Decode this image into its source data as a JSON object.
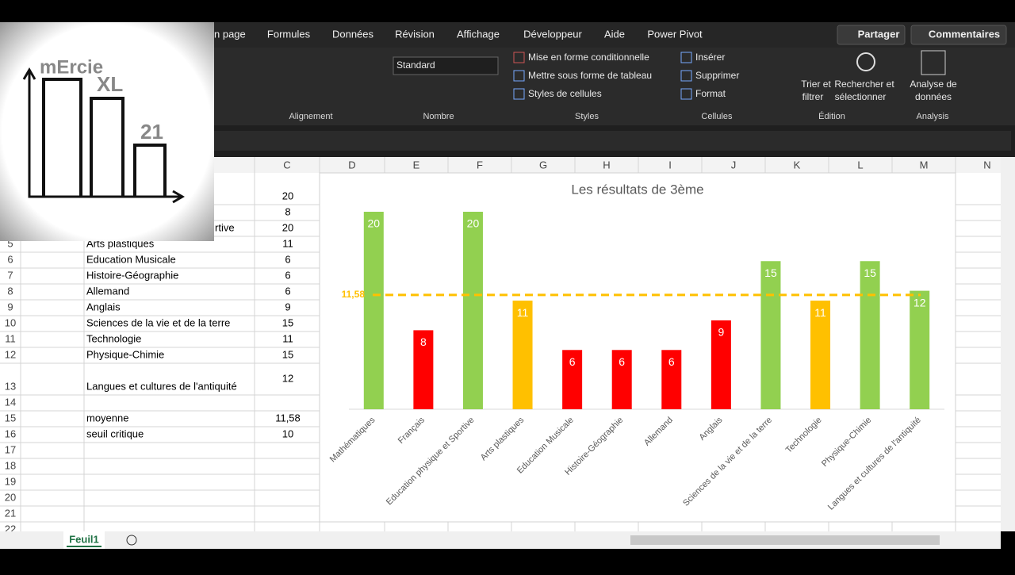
{
  "ribbon": {
    "tabs": [
      "n page",
      "Formules",
      "Données",
      "Révision",
      "Affichage",
      "Développeur",
      "Aide",
      "Power Pivot"
    ],
    "share": "Partager",
    "comments": "Commentaires",
    "number_format": "Standard",
    "commands": {
      "conditional": "Mise en forme conditionnelle",
      "table": "Mettre sous forme de tableau",
      "cell_styles": "Styles de cellules",
      "insert": "Insérer",
      "delete": "Supprimer",
      "format": "Format",
      "sort_1": "Trier et",
      "sort_2": "filtrer",
      "find_1": "Rechercher et",
      "find_2": "sélectionner",
      "analysis_1": "Analyse de",
      "analysis_2": "données"
    },
    "groups": [
      "Alignement",
      "Nombre",
      "Styles",
      "Cellules",
      "Édition",
      "Analysis"
    ]
  },
  "logo": {
    "lines": [
      "mErcie",
      "XL",
      "21"
    ]
  },
  "sheet": {
    "columns": [
      "C",
      "D",
      "E",
      "F",
      "G",
      "H",
      "I",
      "J",
      "K",
      "L",
      "M",
      "N"
    ],
    "rows": [
      {
        "c": "20"
      },
      {
        "c": "8"
      },
      {
        "b": "rtive",
        "c": "20"
      },
      {
        "num": "5",
        "b": "Arts plastiques",
        "c": "11"
      },
      {
        "num": "6",
        "b": "Education Musicale",
        "c": "6"
      },
      {
        "num": "7",
        "b": "Histoire-Géographie",
        "c": "6"
      },
      {
        "num": "8",
        "b": "Allemand",
        "c": "6"
      },
      {
        "num": "9",
        "b": "Anglais",
        "c": "9"
      },
      {
        "num": "10",
        "b": "Sciences de la vie et de la terre",
        "c": "15"
      },
      {
        "num": "11",
        "b": "Technologie",
        "c": "11"
      },
      {
        "num": "12",
        "b": "Physique-Chimie",
        "c": "15"
      },
      {
        "num": "13",
        "b": "Langues et cultures de l'antiquité",
        "c": "12"
      },
      {
        "num": "14"
      },
      {
        "num": "15",
        "b": "moyenne",
        "c": "11,58"
      },
      {
        "num": "16",
        "b": "seuil critique",
        "c": "10"
      },
      {
        "num": "17"
      },
      {
        "num": "18"
      },
      {
        "num": "19"
      },
      {
        "num": "20"
      },
      {
        "num": "21"
      },
      {
        "num": "22"
      }
    ],
    "tab": "Feuil1"
  },
  "chart_data": {
    "type": "bar",
    "title": "Les résultats de 3ème",
    "categories": [
      "Mathématiques",
      "Français",
      "Education physique et Sportive",
      "Arts plastiques",
      "Education Musicale",
      "Histoire-Géographie",
      "Allemand",
      "Anglais",
      "Sciences de la vie et de la terre",
      "Technologie",
      "Physique-Chimie",
      "Langues et cultures de l'antiquité"
    ],
    "values": [
      20,
      8,
      20,
      11,
      6,
      6,
      6,
      9,
      15,
      11,
      15,
      12
    ],
    "colors": [
      "#92d050",
      "#ff0000",
      "#92d050",
      "#ffc000",
      "#ff0000",
      "#ff0000",
      "#ff0000",
      "#ff0000",
      "#92d050",
      "#ffc000",
      "#92d050",
      "#92d050"
    ],
    "ylim": [
      0,
      20
    ],
    "reference_line": {
      "value": 11.58,
      "label": "11,58",
      "color": "#ffc000"
    }
  }
}
